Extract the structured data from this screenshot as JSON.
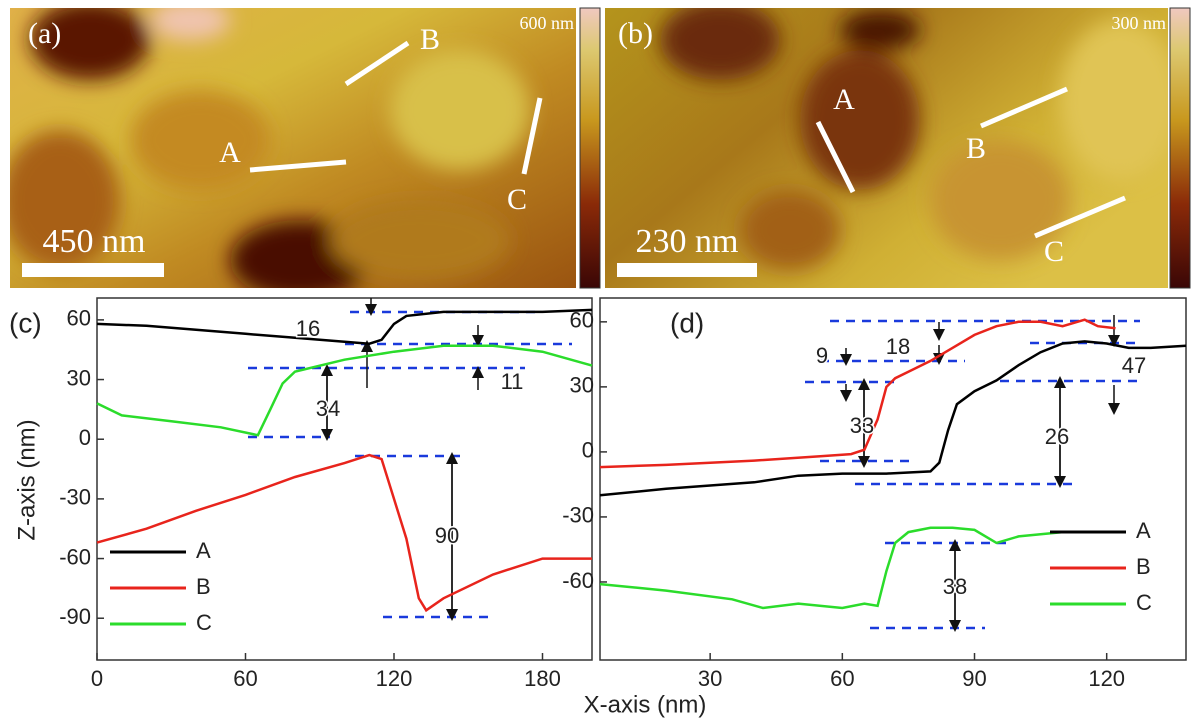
{
  "images": [
    {
      "panel": "(a)",
      "scale_bar": "450 nm",
      "colorbar_max": "600 nm",
      "line_labels": [
        "A",
        "B",
        "C"
      ]
    },
    {
      "panel": "(b)",
      "scale_bar": "230 nm",
      "colorbar_max": "300 nm",
      "line_labels": [
        "A",
        "B",
        "C"
      ]
    }
  ],
  "shared_xlabel": "X-axis (nm)",
  "chart_data": [
    {
      "type": "line",
      "panel": "(c)",
      "ylabel": "Z-axis (nm)",
      "xlim": [
        0,
        200
      ],
      "xticks": [
        0,
        60,
        120,
        180
      ],
      "ylim": [
        -111,
        71
      ],
      "yticks": [
        60,
        30,
        0,
        -30,
        -60,
        -90
      ],
      "legend": "lower-left",
      "series": [
        {
          "name": "A",
          "color": "#000000",
          "x": [
            0,
            20,
            40,
            60,
            80,
            100,
            110,
            115,
            120,
            125,
            140,
            160,
            180,
            200
          ],
          "values": [
            58,
            57,
            55,
            53,
            51,
            49,
            48,
            50,
            58,
            62,
            64,
            64,
            64,
            65
          ]
        },
        {
          "name": "B",
          "color": "#e8241c",
          "x": [
            0,
            20,
            40,
            60,
            80,
            100,
            110,
            115,
            120,
            125,
            130,
            133,
            140,
            160,
            180,
            200
          ],
          "values": [
            -52,
            -45,
            -36,
            -28,
            -19,
            -12,
            -8,
            -10,
            -30,
            -50,
            -80,
            -86,
            -80,
            -68,
            -60,
            -60
          ]
        },
        {
          "name": "C",
          "color": "#2bdc2b",
          "x": [
            0,
            10,
            30,
            50,
            65,
            70,
            75,
            80,
            100,
            120,
            140,
            160,
            180,
            200
          ],
          "values": [
            18,
            12,
            9,
            6,
            2,
            15,
            28,
            34,
            40,
            44,
            47,
            47,
            44,
            37
          ]
        }
      ],
      "annotations": [
        "16",
        "34",
        "11",
        "90"
      ]
    },
    {
      "type": "line",
      "panel": "(d)",
      "xlim": [
        5,
        138
      ],
      "xticks": [
        30,
        60,
        90,
        120
      ],
      "ylim": [
        -96,
        71
      ],
      "yticks": [
        60,
        30,
        0,
        -30,
        -60
      ],
      "legend": "center-right",
      "series": [
        {
          "name": "A",
          "color": "#000000",
          "x": [
            5,
            20,
            40,
            50,
            60,
            70,
            80,
            82,
            84,
            86,
            90,
            95,
            100,
            105,
            110,
            115,
            120,
            125,
            130,
            138
          ],
          "values": [
            -20,
            -17,
            -14,
            -11,
            -10,
            -10,
            -9,
            -5,
            10,
            22,
            28,
            33,
            40,
            46,
            50,
            51,
            50,
            48,
            48,
            49
          ]
        },
        {
          "name": "B",
          "color": "#e8241c",
          "x": [
            5,
            20,
            40,
            55,
            62,
            65,
            68,
            70,
            72,
            75,
            80,
            85,
            90,
            95,
            100,
            105,
            110,
            115,
            118,
            122
          ],
          "values": [
            -7,
            -6,
            -4,
            -2,
            -1,
            1,
            15,
            30,
            34,
            37,
            42,
            48,
            54,
            58,
            60,
            60,
            58,
            61,
            58,
            57
          ]
        },
        {
          "name": "C",
          "color": "#2bdc2b",
          "x": [
            5,
            20,
            35,
            42,
            50,
            60,
            65,
            68,
            70,
            72,
            75,
            80,
            85,
            90,
            95,
            100,
            105,
            110,
            112
          ],
          "values": [
            -61,
            -64,
            -68,
            -72,
            -70,
            -72,
            -70,
            -71,
            -55,
            -42,
            -37,
            -35,
            -35,
            -36,
            -42,
            -39,
            -38,
            -37,
            -37
          ]
        }
      ],
      "annotations": [
        "9",
        "18",
        "33",
        "47",
        "26",
        "38"
      ]
    }
  ]
}
